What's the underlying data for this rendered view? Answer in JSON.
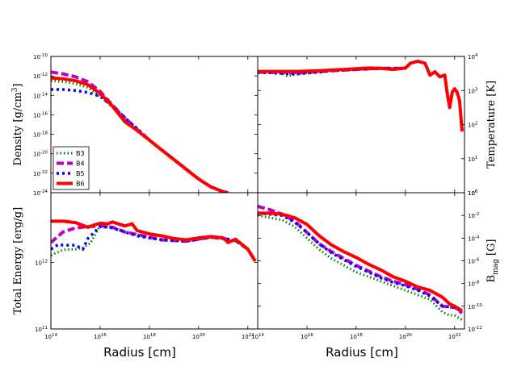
{
  "chart_data": {
    "type": "line",
    "title": "",
    "xlabel_main": "Radius [cm]",
    "x_range_log10": [
      14,
      22.4
    ],
    "x_ticks": [
      {
        "label": "10",
        "exp": "14"
      },
      {
        "label": "10",
        "exp": "16"
      },
      {
        "label": "10",
        "exp": "18"
      },
      {
        "label": "10",
        "exp": "20"
      },
      {
        "label": "10",
        "exp": "22"
      }
    ],
    "x_ticks_right_col": [
      {
        "label": "10",
        "exp": "14"
      },
      {
        "label": "10",
        "exp": "16"
      },
      {
        "label": "10",
        "exp": "18"
      },
      {
        "label": "10",
        "exp": "20"
      },
      {
        "label": "10",
        "exp": "22"
      }
    ],
    "series_styles": [
      {
        "name": "B3",
        "color": "#008000",
        "dash": "1.5,3",
        "width": 3
      },
      {
        "name": "B4",
        "color": "#bf00bf",
        "dash": "9,4",
        "width": 4
      },
      {
        "name": "B5",
        "color": "#0000ff",
        "dash": "3,4",
        "width": 3.5
      },
      {
        "name": "B6",
        "color": "#ff0000",
        "dash": "",
        "width": 4
      }
    ],
    "legend": {
      "placement": "lower-left of top-left panel",
      "entries": [
        "B3",
        "B4",
        "B5",
        "B6"
      ]
    },
    "panels": [
      {
        "id": "density",
        "ylabel": "Density [g/cm",
        "ylabel_sup": "3",
        "ylabel_tail": "]",
        "y_axis_side": "left",
        "scale": "log",
        "y_range_log10": [
          -24,
          -10
        ],
        "y_ticks": [
          {
            "label": "10",
            "exp": "-24"
          },
          {
            "label": "10",
            "exp": "-22"
          },
          {
            "label": "10",
            "exp": "-20"
          },
          {
            "label": "10",
            "exp": "-18"
          },
          {
            "label": "10",
            "exp": "-16"
          },
          {
            "label": "10",
            "exp": "-14"
          },
          {
            "label": "10",
            "exp": "-12"
          },
          {
            "label": "10",
            "exp": "-10"
          }
        ],
        "series": [
          {
            "name": "B3",
            "x": [
              14,
              14.5,
              15,
              15.5,
              16,
              16.5,
              17,
              17.5,
              18,
              18.5,
              19,
              19.5,
              20,
              20.5,
              21,
              21.2
            ],
            "y": [
              -12.5,
              -12.6,
              -12.8,
              -13.2,
              -14.1,
              -15.2,
              -16.4,
              -17.5,
              -18.6,
              -19.6,
              -20.6,
              -21.6,
              -22.6,
              -23.4,
              -23.9,
              -24
            ]
          },
          {
            "name": "B4",
            "x": [
              14,
              14.5,
              15,
              15.5,
              16,
              16.5,
              17,
              17.5,
              18,
              18.5,
              19,
              19.5,
              20,
              20.5,
              21,
              21.2
            ],
            "y": [
              -11.6,
              -11.8,
              -12.1,
              -12.6,
              -13.6,
              -15.0,
              -16.3,
              -17.5,
              -18.6,
              -19.6,
              -20.6,
              -21.6,
              -22.6,
              -23.4,
              -23.9,
              -24
            ]
          },
          {
            "name": "B5",
            "x": [
              14,
              14.5,
              15,
              15.5,
              16,
              16.5,
              17,
              17.5,
              18,
              18.5,
              19,
              19.5,
              20,
              20.5,
              21,
              21.2
            ],
            "y": [
              -13.4,
              -13.4,
              -13.5,
              -13.7,
              -14.1,
              -15.1,
              -16.3,
              -17.4,
              -18.6,
              -19.6,
              -20.6,
              -21.6,
              -22.6,
              -23.4,
              -23.9,
              -24
            ]
          },
          {
            "name": "B6",
            "x": [
              14,
              14.5,
              15,
              15.5,
              16,
              16.5,
              17,
              17.5,
              18,
              18.5,
              19,
              19.5,
              20,
              20.5,
              21,
              21.2
            ],
            "y": [
              -12.2,
              -12.3,
              -12.5,
              -12.9,
              -13.8,
              -15.1,
              -16.7,
              -17.6,
              -18.6,
              -19.6,
              -20.6,
              -21.6,
              -22.6,
              -23.4,
              -23.9,
              -24
            ]
          }
        ]
      },
      {
        "id": "temperature",
        "ylabel": "Temperature [K]",
        "y_axis_side": "right",
        "scale": "log",
        "y_range_log10": [
          0,
          4
        ],
        "y_ticks": [
          {
            "label": "10",
            "exp": "0"
          },
          {
            "label": "10",
            "exp": "1"
          },
          {
            "label": "10",
            "exp": "2"
          },
          {
            "label": "10",
            "exp": "3"
          },
          {
            "label": "10",
            "exp": "4"
          }
        ],
        "series": [
          {
            "name": "B3",
            "x": [
              14,
              14.5,
              15,
              15.2,
              15.5,
              16,
              16.5,
              17,
              18,
              19,
              20
            ],
            "y": [
              3.52,
              3.52,
              3.5,
              3.42,
              3.47,
              3.52,
              3.54,
              3.58,
              3.62,
              3.65,
              3.65
            ]
          },
          {
            "name": "B4",
            "x": [
              14,
              14.5,
              15,
              15.5,
              16,
              16.5,
              17,
              18,
              19,
              20
            ],
            "y": [
              3.54,
              3.54,
              3.53,
              3.52,
              3.53,
              3.55,
              3.58,
              3.62,
              3.65,
              3.65
            ]
          },
          {
            "name": "B5",
            "x": [
              14,
              14.5,
              15,
              15.5,
              16,
              16.5,
              17,
              18,
              19,
              20
            ],
            "y": [
              3.53,
              3.52,
              3.5,
              3.48,
              3.51,
              3.54,
              3.58,
              3.62,
              3.65,
              3.65
            ]
          },
          {
            "name": "B6",
            "x": [
              14,
              14.5,
              15,
              15.5,
              16,
              16.5,
              17,
              17.5,
              18,
              18.5,
              19,
              19.5,
              20,
              20.2,
              20.5,
              20.8,
              21.0,
              21.2,
              21.4,
              21.6,
              21.7,
              21.8,
              21.9,
              22.0,
              22.1,
              22.2,
              22.3
            ],
            "y": [
              3.56,
              3.56,
              3.56,
              3.56,
              3.57,
              3.58,
              3.6,
              3.62,
              3.64,
              3.66,
              3.65,
              3.62,
              3.66,
              3.8,
              3.86,
              3.8,
              3.45,
              3.55,
              3.4,
              3.45,
              2.9,
              2.5,
              2.95,
              3.05,
              2.95,
              2.7,
              1.8
            ]
          }
        ]
      },
      {
        "id": "total-energy",
        "ylabel": "Total Energy [erg/g]",
        "y_axis_side": "left",
        "scale": "log",
        "y_range_log10": [
          11,
          13.05
        ],
        "y_ticks": [
          {
            "label": "10",
            "exp": "11"
          },
          {
            "label": "10",
            "exp": "12"
          }
        ],
        "series": [
          {
            "name": "B3",
            "x": [
              14,
              14.5,
              15,
              15.3,
              15.6,
              15.8,
              16,
              16.5,
              17,
              17.5,
              18,
              18.5,
              19,
              19.5,
              20,
              20.5,
              21,
              21.5,
              22,
              22.3
            ],
            "y": [
              12.11,
              12.19,
              12.2,
              12.22,
              12.29,
              12.42,
              12.56,
              12.53,
              12.45,
              12.42,
              12.38,
              12.34,
              12.33,
              12.32,
              12.35,
              12.38,
              12.36,
              12.33,
              12.2,
              12.02
            ]
          },
          {
            "name": "B4",
            "x": [
              14,
              14.5,
              15,
              15.5,
              16,
              16.5,
              17,
              17.5,
              18,
              18.5,
              19,
              19.5,
              20,
              20.5,
              21,
              21.5,
              22,
              22.3
            ],
            "y": [
              12.3,
              12.46,
              12.52,
              12.54,
              12.55,
              12.53,
              12.46,
              12.42,
              12.38,
              12.34,
              12.33,
              12.32,
              12.35,
              12.38,
              12.36,
              12.33,
              12.2,
              12.02
            ]
          },
          {
            "name": "B5",
            "x": [
              14,
              14.3,
              14.5,
              15,
              15.3,
              15.5,
              16,
              16.5,
              17,
              17.5,
              18,
              18.5,
              19,
              19.5,
              20,
              20.5,
              21,
              21.5,
              22,
              22.3
            ],
            "y": [
              12.2,
              12.27,
              12.26,
              12.26,
              12.2,
              12.36,
              12.54,
              12.52,
              12.46,
              12.4,
              12.37,
              12.34,
              12.33,
              12.32,
              12.35,
              12.38,
              12.36,
              12.33,
              12.2,
              12.02
            ]
          },
          {
            "name": "B6",
            "x": [
              14,
              14.5,
              15,
              15.5,
              15.8,
              16,
              16.3,
              16.5,
              17,
              17.3,
              17.5,
              18,
              18.5,
              19,
              19.5,
              20,
              20.5,
              21,
              21.2,
              21.5,
              22,
              22.3
            ],
            "y": [
              12.62,
              12.62,
              12.6,
              12.53,
              12.57,
              12.59,
              12.58,
              12.61,
              12.55,
              12.58,
              12.48,
              12.43,
              12.4,
              12.36,
              12.34,
              12.37,
              12.39,
              12.37,
              12.3,
              12.35,
              12.2,
              12.02
            ]
          }
        ]
      },
      {
        "id": "bmag",
        "ylabel": "B",
        "ylabel_sub": "mag",
        "ylabel_tail": " [G]",
        "y_axis_side": "right",
        "scale": "log",
        "y_range_log10": [
          -12,
          0
        ],
        "y_ticks": [
          {
            "label": "10",
            "exp": "-12"
          },
          {
            "label": "10",
            "exp": "-10"
          },
          {
            "label": "10",
            "exp": "-8"
          },
          {
            "label": "10",
            "exp": "-6"
          },
          {
            "label": "10",
            "exp": "-4"
          },
          {
            "label": "10",
            "exp": "-2"
          },
          {
            "label": "10",
            "exp": "0"
          }
        ],
        "series": [
          {
            "name": "B3",
            "x": [
              14,
              14.5,
              15,
              15.5,
              16,
              16.5,
              17,
              17.5,
              18,
              18.5,
              19,
              19.5,
              20,
              20.5,
              21,
              21.5,
              21.8,
              22.0,
              22.3
            ],
            "y": [
              -2.0,
              -2.2,
              -2.4,
              -3.0,
              -4.0,
              -5.0,
              -5.8,
              -6.4,
              -7.0,
              -7.4,
              -7.8,
              -8.2,
              -8.6,
              -9.0,
              -9.4,
              -10.5,
              -10.8,
              -10.8,
              -11.2
            ]
          },
          {
            "name": "B4",
            "x": [
              14,
              14.5,
              15,
              15.5,
              16,
              16.5,
              17,
              17.5,
              18,
              18.5,
              19,
              19.5,
              20,
              20.5,
              21,
              21.5,
              22.0,
              22.3
            ],
            "y": [
              -1.2,
              -1.5,
              -1.9,
              -2.5,
              -3.5,
              -4.5,
              -5.2,
              -5.8,
              -6.4,
              -6.9,
              -7.4,
              -7.8,
              -8.1,
              -8.5,
              -9.0,
              -10.0,
              -10.1,
              -10.6
            ]
          },
          {
            "name": "B5",
            "x": [
              14,
              14.5,
              15,
              15.5,
              16,
              16.5,
              17,
              17.5,
              18,
              18.5,
              19,
              19.5,
              20,
              20.5,
              21,
              21.5,
              22.0,
              22.3
            ],
            "y": [
              -1.8,
              -1.9,
              -2.0,
              -2.6,
              -3.5,
              -4.5,
              -5.3,
              -5.9,
              -6.5,
              -7.0,
              -7.5,
              -7.9,
              -8.2,
              -8.6,
              -9.1,
              -10.0,
              -10.1,
              -10.5
            ]
          },
          {
            "name": "B6",
            "x": [
              14,
              14.5,
              15,
              15.5,
              16,
              16.5,
              17,
              17.5,
              18,
              18.5,
              19,
              19.5,
              20,
              20.5,
              21,
              21.5,
              21.8,
              22.0,
              22.3
            ],
            "y": [
              -1.8,
              -1.8,
              -1.9,
              -2.2,
              -2.8,
              -3.8,
              -4.6,
              -5.2,
              -5.7,
              -6.3,
              -6.8,
              -7.4,
              -7.8,
              -8.3,
              -8.6,
              -9.2,
              -9.8,
              -10.0,
              -10.4
            ]
          }
        ]
      }
    ]
  }
}
